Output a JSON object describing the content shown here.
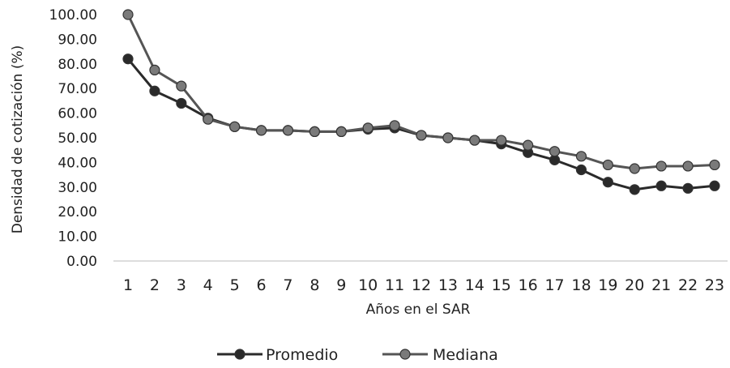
{
  "chart_data": {
    "type": "line",
    "title": "",
    "xlabel": "Años en el SAR",
    "ylabel": "Densidad de cotización (%)",
    "ylim": [
      0,
      100
    ],
    "yticks": [
      "0.00",
      "10.00",
      "20.00",
      "30.00",
      "40.00",
      "50.00",
      "60.00",
      "70.00",
      "80.00",
      "90.00",
      "100.00"
    ],
    "categories": [
      "1",
      "2",
      "3",
      "4",
      "5",
      "6",
      "7",
      "8",
      "9",
      "10",
      "11",
      "12",
      "13",
      "14",
      "15",
      "16",
      "17",
      "18",
      "19",
      "20",
      "21",
      "22",
      "23"
    ],
    "legend_position": "bottom",
    "grid": false,
    "series": [
      {
        "name": "Promedio",
        "color": "#2a2a2a",
        "values": [
          82,
          69,
          64,
          58,
          54.5,
          53,
          53,
          52.5,
          52.5,
          53.5,
          54,
          51,
          50,
          49,
          47.5,
          44,
          41,
          37,
          32,
          29,
          30.5,
          29.5,
          30.5
        ]
      },
      {
        "name": "Mediana",
        "color": "#555555",
        "values": [
          100,
          77.5,
          71,
          57.5,
          54.5,
          53,
          53,
          52.5,
          52.5,
          54,
          55,
          51,
          50,
          49,
          49,
          47,
          44.5,
          42.5,
          39,
          37.5,
          38.5,
          38.5,
          39
        ]
      }
    ]
  }
}
